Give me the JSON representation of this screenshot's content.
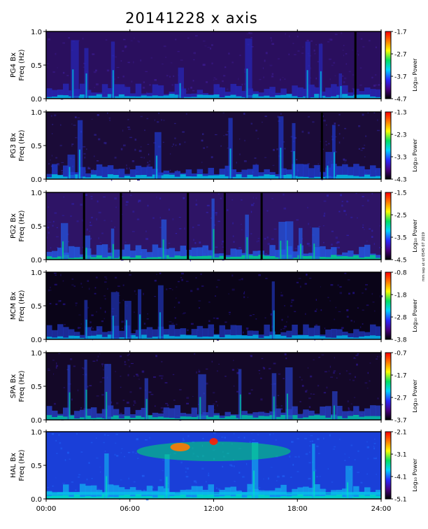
{
  "title": "20141228 x axis",
  "stamp": "mm sep ut ut 0545 07 2019",
  "chart_data": {
    "type": "heatmap",
    "title": "20141228 x axis",
    "x_ticks": [
      "00:00",
      "06:00",
      "12:00",
      "18:00",
      "24:00"
    ],
    "x_range_hours": [
      0,
      24
    ],
    "y_range_hz": [
      0.0,
      1.0
    ],
    "y_ticks": [
      "0.0",
      "0.5",
      "1.0"
    ],
    "colorbar_label": "Log₁₀ Power",
    "colormap": [
      "#000000",
      "#4b0082",
      "#2b2bff",
      "#00d5ff",
      "#00e060",
      "#ffff00",
      "#ff7a00",
      "#ff0000"
    ],
    "panels": [
      {
        "station": "PG4",
        "ylabel1": "PG4 Bx",
        "ylabel2": "Freq (Hz)",
        "cbar": [
          "-1.7",
          "-2.7",
          "-3.7",
          "-4.7"
        ]
      },
      {
        "station": "PG3",
        "ylabel1": "PG3 Bx",
        "ylabel2": "Freq (Hz)",
        "cbar": [
          "-1.3",
          "-2.3",
          "-3.3",
          "-4.3"
        ]
      },
      {
        "station": "PG2",
        "ylabel1": "PG2 Bx",
        "ylabel2": "Freq (Hz)",
        "cbar": [
          "-1.5",
          "-2.5",
          "-3.5",
          "-4.5"
        ]
      },
      {
        "station": "MCM",
        "ylabel1": "MCM Bx",
        "ylabel2": "Freq (Hz)",
        "cbar": [
          "-0.8",
          "-1.8",
          "-2.8",
          "-3.8"
        ]
      },
      {
        "station": "SPA",
        "ylabel1": "SPA Bx",
        "ylabel2": "Freq (Hz)",
        "cbar": [
          "-0.7",
          "-1.7",
          "-2.7",
          "-3.7"
        ]
      },
      {
        "station": "HAL",
        "ylabel1": "HAL Bx",
        "ylabel2": "Freq (Hz)",
        "cbar": [
          "-2.1",
          "-3.1",
          "-4.1",
          "-5.1"
        ]
      }
    ]
  }
}
